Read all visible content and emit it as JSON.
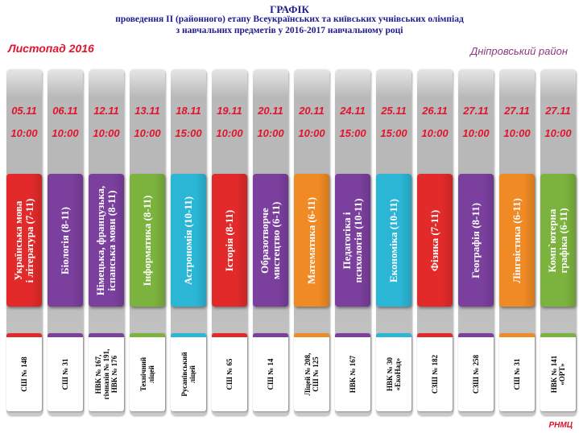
{
  "header": {
    "title": "ГРАФІК",
    "line2": "проведення ІІ (районного) етапу Всеукраїнських та київських учнівських олімпіад",
    "line3": "з навчальних предметів у 2016-2017 навчальному році"
  },
  "month": "Листопад 2016",
  "district": "Дніпровський район",
  "footer": "РНМЦ",
  "colors": {
    "red": "#e22a2a",
    "purple": "#7b3f9e",
    "green": "#7cb33e",
    "cyan": "#2bb6d6",
    "orange": "#f08a24",
    "date_text": "#e0142c"
  },
  "columns": [
    {
      "date": "05.11",
      "time": "10:00",
      "subject": [
        "Українська мова",
        "і література (7-11)"
      ],
      "school": [
        "СШ № 148"
      ],
      "color": "red"
    },
    {
      "date": "06.11",
      "time": "10:00",
      "subject": [
        "Біологія (8-11)"
      ],
      "school": [
        "СШ № 31"
      ],
      "color": "purple"
    },
    {
      "date": "12.11",
      "time": "10:00",
      "subject": [
        "Німецька, французька,",
        "іспанська мови (8-11)"
      ],
      "school": [
        "НВК № 167,",
        "гімназія № 191,",
        "НВК № 176"
      ],
      "color": "purple"
    },
    {
      "date": "13.11",
      "time": "10:00",
      "subject": [
        "Інформатика (8-11)"
      ],
      "school": [
        "Технічний",
        "ліцей"
      ],
      "color": "green"
    },
    {
      "date": "18.11",
      "time": "15:00",
      "subject": [
        "Астрономія (10-11)"
      ],
      "school": [
        "Русанівський",
        "ліцей"
      ],
      "color": "cyan"
    },
    {
      "date": "19.11",
      "time": "10:00",
      "subject": [
        "Історія (8-11)"
      ],
      "school": [
        "СШ № 65"
      ],
      "color": "red"
    },
    {
      "date": "20.11",
      "time": "10:00",
      "subject": [
        "Образотворче",
        "мистецтво (6-11)"
      ],
      "school": [
        "СШ № 14"
      ],
      "color": "purple"
    },
    {
      "date": "20.11",
      "time": "10:00",
      "subject": [
        "Математика (6-11)"
      ],
      "school": [
        "Ліцей № 208,",
        "СШ № 125"
      ],
      "color": "orange"
    },
    {
      "date": "24.11",
      "time": "15:00",
      "subject": [
        "Педагогіка  і",
        "психологія  (10-11)"
      ],
      "school": [
        "НВК № 167"
      ],
      "color": "purple"
    },
    {
      "date": "25.11",
      "time": "15:00",
      "subject": [
        "Економіка (10-11)"
      ],
      "school": [
        "НВК № 30",
        "«ЕкоНад»"
      ],
      "color": "cyan"
    },
    {
      "date": "26.11",
      "time": "10:00",
      "subject": [
        "Фізика (7-11)"
      ],
      "school": [
        "СЗШ № 182"
      ],
      "color": "red"
    },
    {
      "date": "27.11",
      "time": "10:00",
      "subject": [
        "Географія (8-11)"
      ],
      "school": [
        "СЗШ № 258"
      ],
      "color": "purple"
    },
    {
      "date": "27.11",
      "time": "10:00",
      "subject": [
        "Лінгвістика (6-11)"
      ],
      "school": [
        "СШ № 31"
      ],
      "color": "orange"
    },
    {
      "date": "27.11",
      "time": "10:00",
      "subject": [
        "Комп`ютерна",
        "графіка  (6-11)"
      ],
      "school": [
        "НВК № 141",
        "«ОРТ»"
      ],
      "color": "green"
    }
  ]
}
